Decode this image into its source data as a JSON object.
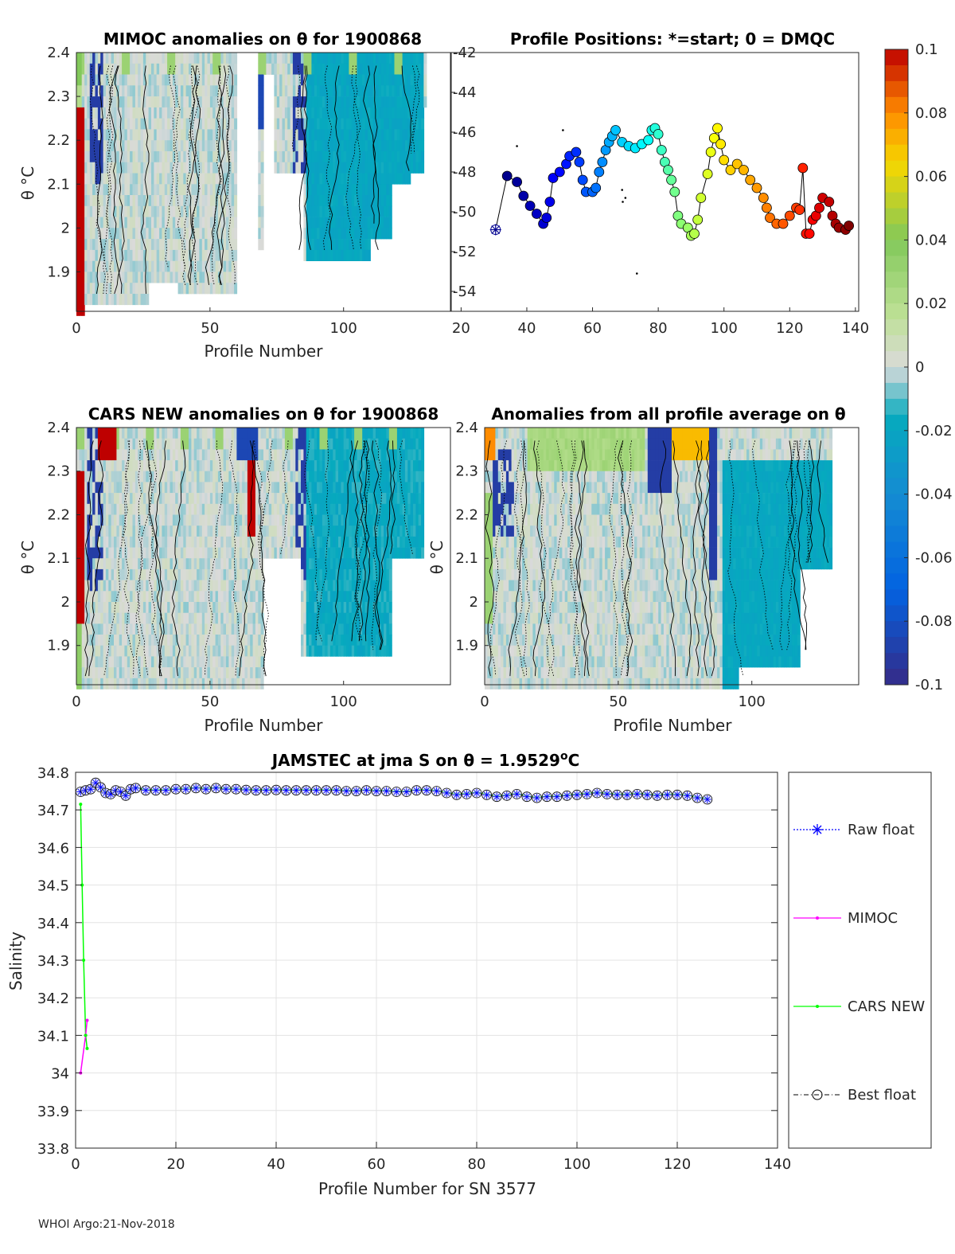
{
  "footer": "WHOI Argo:21-Nov-2018",
  "colorbar": {
    "ticks": [
      "0.1",
      "0.08",
      "0.06",
      "0.04",
      "0.02",
      "0",
      "-0.02",
      "-0.04",
      "-0.06",
      "-0.08",
      "-0.1"
    ],
    "range": [
      -0.1,
      0.1
    ]
  },
  "chart_data": [
    {
      "id": "mimoc",
      "type": "heatmap",
      "title": "MIMOC anomalies on θ  for 1900868",
      "xlabel": "Profile Number",
      "ylabel": "θ °C",
      "xlim": [
        0,
        140
      ],
      "ylim": [
        1.81,
        2.4
      ],
      "xticks": [
        "0",
        "50",
        "100"
      ],
      "yticks": [
        "2.4",
        "2.3",
        "2.2",
        "2.1",
        "2",
        "1.9"
      ]
    },
    {
      "id": "positions",
      "type": "scatter",
      "title": "Profile Positions: *=start; 0 = DMQC",
      "xlim": [
        17,
        141
      ],
      "ylim": [
        -55,
        -42
      ],
      "xticks": [
        "20",
        "40",
        "60",
        "80",
        "100",
        "120",
        "140"
      ],
      "yticks": [
        "-42",
        "-44",
        "-46",
        "-48",
        "-50",
        "-52",
        "-54"
      ],
      "start": [
        30.5,
        -50.9
      ],
      "track": [
        [
          30.5,
          -50.9
        ],
        [
          34,
          -48.2
        ],
        [
          37,
          -48.5
        ],
        [
          39,
          -49.2
        ],
        [
          41,
          -49.7
        ],
        [
          43,
          -50.1
        ],
        [
          45,
          -50.6
        ],
        [
          46,
          -50.3
        ],
        [
          47,
          -49.5
        ],
        [
          48,
          -48.3
        ],
        [
          50,
          -48.0
        ],
        [
          52,
          -47.6
        ],
        [
          53,
          -47.2
        ],
        [
          55,
          -47.0
        ],
        [
          56,
          -47.5
        ],
        [
          57,
          -48.4
        ],
        [
          58,
          -49.0
        ],
        [
          60,
          -49.0
        ],
        [
          61,
          -48.8
        ],
        [
          62,
          -48.0
        ],
        [
          63,
          -47.5
        ],
        [
          64,
          -46.9
        ],
        [
          65,
          -46.5
        ],
        [
          66,
          -46.2
        ],
        [
          67,
          -45.9
        ],
        [
          69,
          -46.5
        ],
        [
          71,
          -46.7
        ],
        [
          73,
          -46.8
        ],
        [
          75,
          -46.6
        ],
        [
          77,
          -46.4
        ],
        [
          78,
          -45.9
        ],
        [
          79,
          -45.8
        ],
        [
          80,
          -46.1
        ],
        [
          81,
          -46.9
        ],
        [
          82,
          -47.5
        ],
        [
          83,
          -47.9
        ],
        [
          84,
          -48.4
        ],
        [
          85,
          -49.0
        ],
        [
          86,
          -50.2
        ],
        [
          87,
          -50.6
        ],
        [
          89,
          -50.8
        ],
        [
          90,
          -51.2
        ],
        [
          91,
          -51.1
        ],
        [
          92,
          -50.4
        ],
        [
          93,
          -49.3
        ],
        [
          95,
          -48.1
        ],
        [
          96,
          -47.0
        ],
        [
          97,
          -46.3
        ],
        [
          98,
          -45.8
        ],
        [
          99,
          -46.6
        ],
        [
          100,
          -47.4
        ],
        [
          102,
          -47.9
        ],
        [
          104,
          -47.6
        ],
        [
          106,
          -47.9
        ],
        [
          108,
          -48.4
        ],
        [
          110,
          -48.8
        ],
        [
          112,
          -49.3
        ],
        [
          113,
          -49.8
        ],
        [
          114,
          -50.3
        ],
        [
          116,
          -50.6
        ],
        [
          118,
          -50.6
        ],
        [
          120,
          -50.2
        ],
        [
          122,
          -49.8
        ],
        [
          123,
          -49.9
        ],
        [
          124,
          -47.8
        ],
        [
          125,
          -51.1
        ],
        [
          126,
          -51.1
        ],
        [
          127,
          -50.4
        ],
        [
          128,
          -50.2
        ],
        [
          129,
          -49.8
        ],
        [
          130,
          -49.3
        ],
        [
          132,
          -49.5
        ],
        [
          133,
          -50.2
        ],
        [
          134,
          -50.6
        ],
        [
          135,
          -50.8
        ],
        [
          137,
          -50.9
        ],
        [
          138,
          -50.7
        ]
      ]
    },
    {
      "id": "cars",
      "type": "heatmap",
      "title": "CARS NEW anomalies on θ for 1900868",
      "xlabel": "Profile Number",
      "ylabel": "θ °C",
      "xlim": [
        0,
        140
      ],
      "ylim": [
        1.81,
        2.4
      ],
      "xticks": [
        "0",
        "50",
        "100"
      ],
      "yticks": [
        "2.4",
        "2.3",
        "2.2",
        "2.1",
        "2",
        "1.9"
      ]
    },
    {
      "id": "avg",
      "type": "heatmap",
      "title": "Anomalies from all profile average on θ",
      "xlabel": "Profile Number",
      "ylabel": "θ °C",
      "xlim": [
        0,
        140
      ],
      "ylim": [
        1.81,
        2.4
      ],
      "xticks": [
        "0",
        "50",
        "100"
      ],
      "yticks": [
        "2.4",
        "2.3",
        "2.2",
        "2.1",
        "2",
        "1.9"
      ]
    },
    {
      "id": "salinity",
      "type": "line",
      "title": "JAMSTEC at jma S on θ = 1.9529°C",
      "xlabel": "Profile Number for SN 3577",
      "ylabel": "Salinity",
      "xlim": [
        0,
        140
      ],
      "ylim": [
        33.8,
        34.8
      ],
      "xticks": [
        "0",
        "20",
        "40",
        "60",
        "80",
        "100",
        "120",
        "140"
      ],
      "yticks": [
        "34.8",
        "34.7",
        "34.6",
        "34.5",
        "34.4",
        "34.3",
        "34.2",
        "34.1",
        "34",
        "33.9",
        "33.8"
      ],
      "legend": [
        "Raw float",
        "MIMOC",
        "CARS NEW",
        "Best float"
      ],
      "series": [
        {
          "name": "MIMOC",
          "x": [
            1,
            2,
            2.3
          ],
          "y": [
            34.0,
            34.1,
            34.14
          ]
        },
        {
          "name": "CARS NEW",
          "x": [
            1,
            1.3,
            1.6,
            2,
            2.3
          ],
          "y": [
            34.715,
            34.5,
            34.3,
            34.1,
            34.065
          ]
        },
        {
          "name": "Raw float",
          "x": [
            1,
            2,
            3,
            4,
            5,
            6,
            7,
            8,
            9,
            10,
            11,
            12,
            14,
            16,
            18,
            20,
            22,
            24,
            26,
            28,
            30,
            32,
            34,
            36,
            38,
            40,
            42,
            44,
            46,
            48,
            50,
            52,
            54,
            56,
            58,
            60,
            62,
            64,
            66,
            68,
            70,
            72,
            74,
            76,
            78,
            80,
            82,
            84,
            86,
            88,
            90,
            92,
            94,
            96,
            98,
            100,
            102,
            104,
            106,
            108,
            110,
            112,
            114,
            116,
            118,
            120,
            122,
            124,
            126
          ],
          "y": [
            34.748,
            34.752,
            34.755,
            34.772,
            34.76,
            34.745,
            34.742,
            34.752,
            34.748,
            34.738,
            34.755,
            34.758,
            34.752,
            34.752,
            34.752,
            34.755,
            34.755,
            34.758,
            34.755,
            34.758,
            34.755,
            34.755,
            34.753,
            34.752,
            34.752,
            34.753,
            34.752,
            34.752,
            34.752,
            34.752,
            34.752,
            34.752,
            34.75,
            34.75,
            34.752,
            34.75,
            34.75,
            34.748,
            34.748,
            34.752,
            34.752,
            34.75,
            34.745,
            34.74,
            34.742,
            34.745,
            34.74,
            34.735,
            34.738,
            34.742,
            34.735,
            34.732,
            34.735,
            34.735,
            34.738,
            34.74,
            34.742,
            34.745,
            34.742,
            34.74,
            34.74,
            34.742,
            34.74,
            34.738,
            34.74,
            34.74,
            34.738,
            34.732,
            34.728
          ]
        }
      ]
    }
  ]
}
